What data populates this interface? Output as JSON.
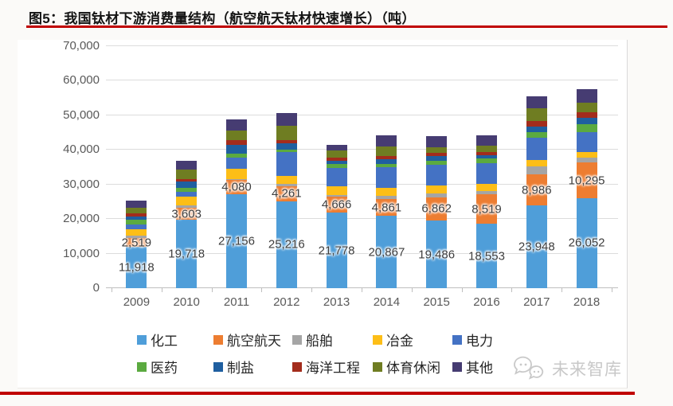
{
  "title": "图5：我国钛材下游消费量结构（航空航天钛材快速增长）（吨）",
  "accent_red": "#C00000",
  "watermark_text": "未来智库",
  "chart_data": {
    "type": "bar",
    "stacked": true,
    "title": "我国钛材下游消费量结构（吨）",
    "xlabel": "",
    "ylabel": "",
    "ylim": [
      0,
      70000
    ],
    "grid": true,
    "legend_position": "bottom",
    "yticks": [
      {
        "value": 0,
        "label": "0"
      },
      {
        "value": 10000,
        "label": "10,000"
      },
      {
        "value": 20000,
        "label": "20,000"
      },
      {
        "value": 30000,
        "label": "30,000"
      },
      {
        "value": 40000,
        "label": "40,000"
      },
      {
        "value": 50000,
        "label": "50,000"
      },
      {
        "value": 60000,
        "label": "60,000"
      },
      {
        "value": 70000,
        "label": "70,000"
      }
    ],
    "categories": [
      "2009",
      "2010",
      "2011",
      "2012",
      "2013",
      "2014",
      "2015",
      "2016",
      "2017",
      "2018"
    ],
    "series": [
      {
        "name": "化工",
        "color": "#4f9ed9",
        "labeled": true,
        "values": [
          11918,
          19718,
          27156,
          25216,
          21778,
          20867,
          19486,
          18553,
          23948,
          26052
        ]
      },
      {
        "name": "航空航天",
        "color": "#ed7d31",
        "labeled": true,
        "values": [
          2519,
          3603,
          4080,
          4261,
          4666,
          4861,
          6862,
          8519,
          8986,
          10295
        ]
      },
      {
        "name": "船舶",
        "color": "#a5a5a5",
        "labeled": false,
        "values": [
          800,
          700,
          400,
          600,
          600,
          1100,
          1100,
          1000,
          2300,
          1500
        ]
      },
      {
        "name": "冶金",
        "color": "#fdbe17",
        "labeled": false,
        "values": [
          1700,
          2400,
          2900,
          2300,
          2500,
          2300,
          2200,
          2000,
          1800,
          1500
        ]
      },
      {
        "name": "电力",
        "color": "#4472c4",
        "labeled": false,
        "values": [
          1600,
          1500,
          3200,
          6900,
          5300,
          5800,
          6000,
          6000,
          6500,
          5800
        ]
      },
      {
        "name": "医药",
        "color": "#5baa40",
        "labeled": false,
        "values": [
          1300,
          1200,
          1200,
          800,
          1000,
          900,
          1100,
          1400,
          1700,
          2300
        ]
      },
      {
        "name": "制盐",
        "color": "#1f5fa0",
        "labeled": false,
        "values": [
          900,
          1700,
          2500,
          1900,
          1000,
          1400,
          1500,
          1100,
          1400,
          1800
        ]
      },
      {
        "name": "海洋工程",
        "color": "#a32c1c",
        "labeled": false,
        "values": [
          800,
          700,
          1500,
          900,
          1000,
          1100,
          800,
          800,
          1700,
          1700
        ]
      },
      {
        "name": "体育休闲",
        "color": "#6f7d22",
        "labeled": false,
        "values": [
          1800,
          2800,
          2600,
          4200,
          2100,
          2700,
          1800,
          1900,
          3600,
          2700
        ]
      },
      {
        "name": "其他",
        "color": "#463c72",
        "labeled": false,
        "values": [
          1900,
          2600,
          3300,
          3500,
          1400,
          3100,
          3100,
          3000,
          3500,
          3900
        ]
      }
    ]
  }
}
